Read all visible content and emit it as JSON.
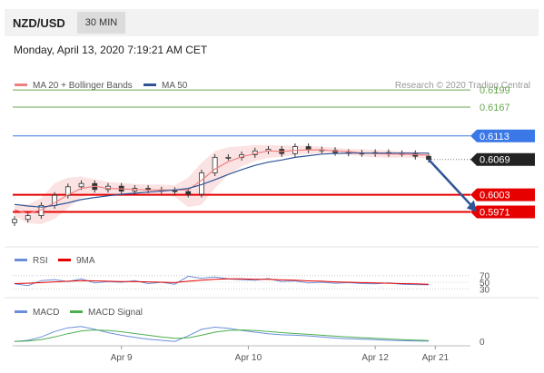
{
  "header": {
    "pair": "NZD/USD",
    "timeframe": "30 MIN"
  },
  "datetime": "Monday, April 13, 2020 7:19:21 AM CET",
  "colors": {
    "ma20": "#f08080",
    "ma50": "#2f5597",
    "green": "#6aa84f",
    "blue": "#3a78e8",
    "red": "#e60000",
    "dark": "#222222",
    "candle_up": "#333333",
    "arrow": "#2f5597"
  },
  "legend": {
    "ma20": "MA 20 + Bollinger Bands",
    "ma50": "MA 50",
    "research": "Research © 2020 Trading Central",
    "rsi": "RSI",
    "rsi_ma": "9MA",
    "macd": "MACD",
    "macd_signal": "MACD Signal"
  },
  "chart_data": [
    {
      "type": "line",
      "name_panel": "price",
      "ylim": [
        0.5943,
        0.6228
      ],
      "x": [
        0,
        1,
        2,
        3,
        4,
        5,
        6,
        7,
        8,
        9,
        10,
        11,
        12,
        13,
        14,
        15,
        16,
        17,
        18,
        19,
        20,
        21,
        22,
        23,
        24,
        25,
        26,
        27,
        28,
        29,
        30,
        31
      ],
      "close": [
        0.5957,
        0.5964,
        0.5983,
        0.6002,
        0.6018,
        0.6024,
        0.6013,
        0.6019,
        0.601,
        0.6015,
        0.6012,
        0.6011,
        0.6009,
        0.6004,
        0.6044,
        0.6073,
        0.6073,
        0.6078,
        0.6085,
        0.6088,
        0.608,
        0.6093,
        0.6087,
        0.6086,
        0.6082,
        0.6081,
        0.608,
        0.6082,
        0.608,
        0.608,
        0.6075,
        0.6069
      ],
      "ma20": [
        0.5975,
        0.5968,
        0.5975,
        0.5988,
        0.6003,
        0.6015,
        0.6019,
        0.6015,
        0.6014,
        0.6013,
        0.6012,
        0.6012,
        0.6012,
        0.6012,
        0.603,
        0.6051,
        0.6065,
        0.6074,
        0.608,
        0.6085,
        0.6084,
        0.6086,
        0.6087,
        0.6087,
        0.6085,
        0.6084,
        0.6081,
        0.608,
        0.6079,
        0.6079,
        0.6078,
        0.6077
      ],
      "bb_upper": [
        0.5985,
        0.5985,
        0.5997,
        0.6025,
        0.6035,
        0.6037,
        0.6032,
        0.6027,
        0.6025,
        0.6023,
        0.6022,
        0.6022,
        0.6021,
        0.6035,
        0.6063,
        0.6085,
        0.6092,
        0.6094,
        0.6096,
        0.6096,
        0.6095,
        0.6095,
        0.6095,
        0.6093,
        0.6091,
        0.6089,
        0.6088,
        0.6087,
        0.6086,
        0.6084,
        0.6083,
        0.6082
      ],
      "bb_lower": [
        0.5963,
        0.595,
        0.5948,
        0.5958,
        0.5978,
        0.5998,
        0.6005,
        0.6004,
        0.6004,
        0.6003,
        0.6003,
        0.6003,
        0.5999,
        0.598,
        0.5984,
        0.6015,
        0.604,
        0.6056,
        0.6066,
        0.6072,
        0.6074,
        0.6077,
        0.6079,
        0.6081,
        0.608,
        0.6078,
        0.6075,
        0.6073,
        0.6072,
        0.6073,
        0.6072,
        0.6071
      ],
      "ma50": [
        0.5985,
        0.5982,
        0.598,
        0.5983,
        0.5988,
        0.5994,
        0.5998,
        0.6001,
        0.6004,
        0.6006,
        0.6008,
        0.601,
        0.6012,
        0.6015,
        0.6022,
        0.6031,
        0.6041,
        0.605,
        0.6058,
        0.6064,
        0.6068,
        0.6073,
        0.6076,
        0.6079,
        0.608,
        0.6081,
        0.6081,
        0.6081,
        0.6081,
        0.6081,
        0.6081,
        0.6081
      ],
      "levels": [
        {
          "value": "0.6199",
          "style": "green-line"
        },
        {
          "value": "0.6167",
          "style": "green-line"
        },
        {
          "value": "0.6113",
          "style": "blue-line"
        },
        {
          "value": "0.6069",
          "style": "last-price"
        },
        {
          "value": "0.6003",
          "style": "red-line"
        },
        {
          "value": "0.5971",
          "style": "red-line"
        }
      ],
      "projection": {
        "from": [
          31,
          0.6069
        ],
        "to": [
          35,
          0.5971
        ]
      }
    },
    {
      "type": "line",
      "name_panel": "rsi",
      "ylim": [
        20,
        80
      ],
      "yticks": [
        "70",
        "50",
        "30"
      ],
      "rsi": [
        45,
        40,
        55,
        58,
        52,
        60,
        48,
        52,
        50,
        55,
        46,
        50,
        44,
        68,
        62,
        66,
        60,
        58,
        56,
        61,
        52,
        54,
        48,
        50,
        47,
        49,
        46,
        45,
        48,
        44,
        43,
        42
      ],
      "rsi_ma": [
        46,
        47,
        49,
        51,
        53,
        55,
        54,
        53,
        52,
        52,
        51,
        50,
        49,
        53,
        56,
        59,
        60,
        60,
        59,
        59,
        57,
        56,
        54,
        53,
        51,
        50,
        49,
        48,
        47,
        46,
        45,
        44
      ]
    },
    {
      "type": "line",
      "name_panel": "macd",
      "ylim": [
        -0.2,
        1.0
      ],
      "yticks": [
        "0"
      ],
      "macd": [
        0.0,
        0.05,
        0.2,
        0.45,
        0.62,
        0.68,
        0.55,
        0.4,
        0.28,
        0.18,
        0.1,
        0.05,
        0.0,
        0.25,
        0.55,
        0.65,
        0.6,
        0.5,
        0.42,
        0.35,
        0.3,
        0.28,
        0.25,
        0.2,
        0.15,
        0.12,
        0.1,
        0.08,
        0.05,
        0.03,
        0.02,
        0.01
      ],
      "macd_signal": [
        0.0,
        0.02,
        0.08,
        0.2,
        0.35,
        0.48,
        0.52,
        0.5,
        0.44,
        0.36,
        0.28,
        0.2,
        0.14,
        0.16,
        0.28,
        0.42,
        0.5,
        0.52,
        0.5,
        0.45,
        0.4,
        0.36,
        0.32,
        0.28,
        0.24,
        0.2,
        0.17,
        0.14,
        0.11,
        0.08,
        0.06,
        0.04
      ],
      "xticks": [
        "Apr 9",
        "Apr 10",
        "Apr 12",
        "Apr 21"
      ],
      "xtick_positions": [
        8,
        17.5,
        27,
        31.5
      ]
    }
  ]
}
